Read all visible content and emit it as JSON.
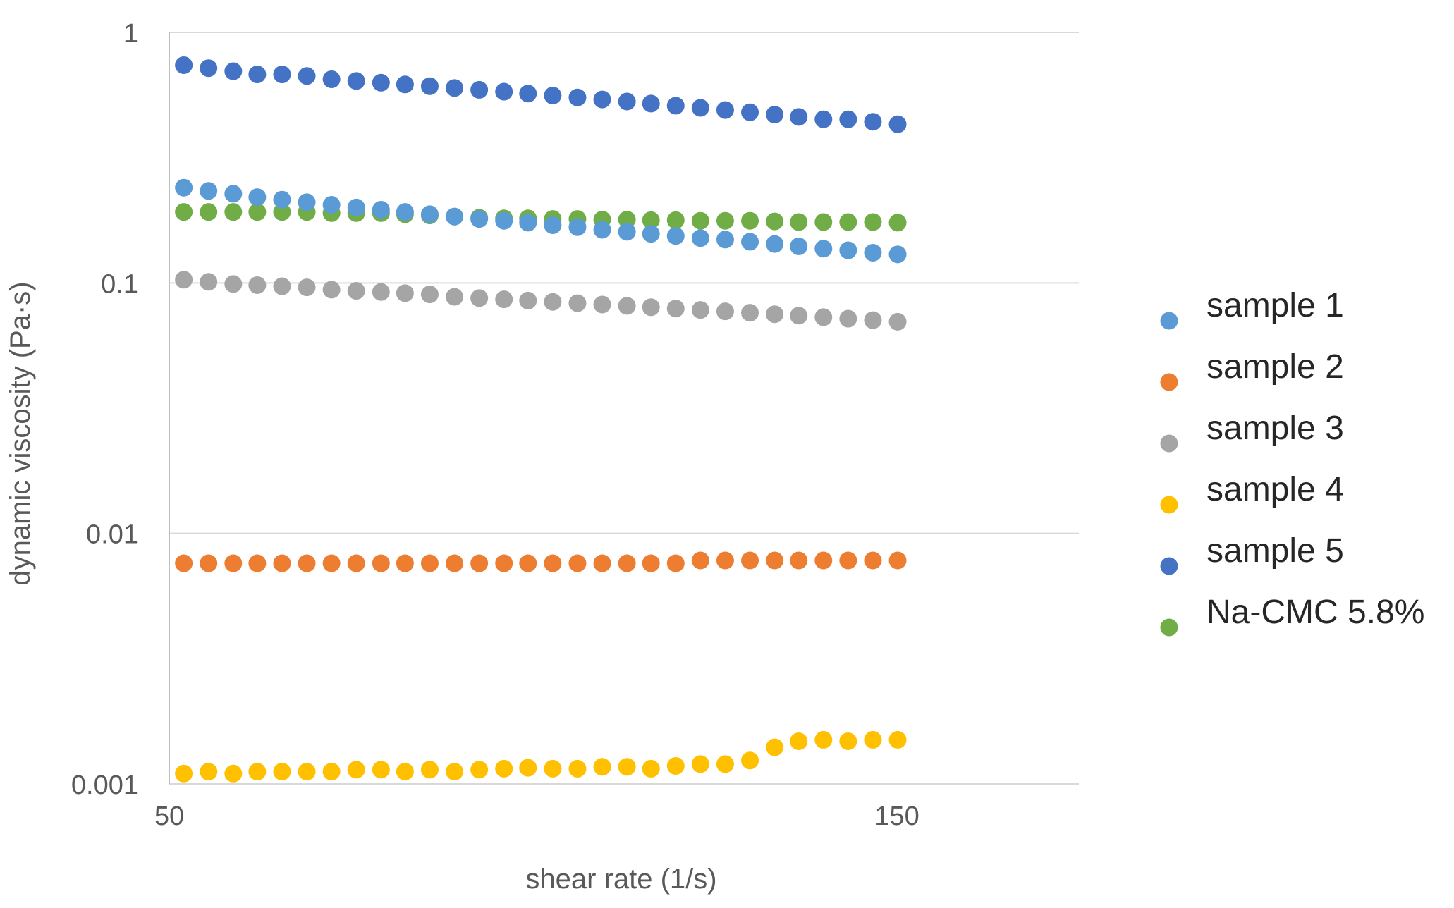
{
  "chart_data": {
    "type": "scatter",
    "title": "",
    "xlabel": "shear rate (1/s)",
    "ylabel": "dynamic viscosity (Pa·s)",
    "xlim": [
      50,
      175
    ],
    "ylim": [
      0.001,
      1
    ],
    "y_scale": "log",
    "x_ticks": [
      {
        "value": 50,
        "label": "50"
      },
      {
        "value": 150,
        "label": "150"
      }
    ],
    "y_ticks": [
      {
        "value": 1,
        "label": "1"
      },
      {
        "value": 0.1,
        "label": "0.1"
      },
      {
        "value": 0.01,
        "label": "0.01"
      },
      {
        "value": 0.001,
        "label": "0.001"
      }
    ],
    "grid": {
      "horizontal": true,
      "vertical": false
    },
    "legend_position": "right",
    "x": [
      52,
      55.4,
      58.8,
      62.1,
      65.5,
      68.9,
      72.3,
      75.7,
      79.1,
      82.4,
      85.8,
      89.2,
      92.6,
      96,
      99.3,
      102.7,
      106.1,
      109.5,
      112.9,
      116.2,
      119.6,
      123,
      126.4,
      129.8,
      133.2,
      136.5,
      139.9,
      143.3,
      146.7,
      150.1
    ],
    "series": [
      {
        "name": "sample 1",
        "color": "#5b9bd5",
        "values": [
          0.24,
          0.233,
          0.227,
          0.22,
          0.215,
          0.21,
          0.205,
          0.2,
          0.196,
          0.192,
          0.188,
          0.184,
          0.18,
          0.177,
          0.174,
          0.17,
          0.167,
          0.163,
          0.16,
          0.157,
          0.154,
          0.151,
          0.149,
          0.146,
          0.143,
          0.14,
          0.137,
          0.135,
          0.132,
          0.13
        ]
      },
      {
        "name": "sample 2",
        "color": "#ed7d31",
        "values": [
          0.0076,
          0.0076,
          0.0076,
          0.0076,
          0.0076,
          0.0076,
          0.0076,
          0.0076,
          0.0076,
          0.0076,
          0.0076,
          0.0076,
          0.0076,
          0.0076,
          0.0076,
          0.0076,
          0.0076,
          0.0076,
          0.0076,
          0.0076,
          0.0076,
          0.0078,
          0.0078,
          0.0078,
          0.0078,
          0.0078,
          0.0078,
          0.0078,
          0.0078,
          0.0078
        ]
      },
      {
        "name": "sample 3",
        "color": "#a5a5a5",
        "values": [
          0.103,
          0.101,
          0.099,
          0.098,
          0.097,
          0.096,
          0.094,
          0.093,
          0.092,
          0.091,
          0.09,
          0.088,
          0.087,
          0.086,
          0.085,
          0.084,
          0.083,
          0.082,
          0.081,
          0.08,
          0.079,
          0.078,
          0.077,
          0.076,
          0.075,
          0.074,
          0.073,
          0.072,
          0.071,
          0.07
        ]
      },
      {
        "name": "sample 4",
        "color": "#ffc000",
        "values": [
          0.0011,
          0.00112,
          0.0011,
          0.00112,
          0.00112,
          0.00112,
          0.00112,
          0.00114,
          0.00114,
          0.00112,
          0.00114,
          0.00112,
          0.00114,
          0.00115,
          0.00116,
          0.00115,
          0.00115,
          0.00117,
          0.00117,
          0.00115,
          0.00118,
          0.0012,
          0.0012,
          0.00124,
          0.0014,
          0.00148,
          0.0015,
          0.00148,
          0.0015,
          0.0015
        ]
      },
      {
        "name": "sample 5",
        "color": "#4472c4",
        "values": [
          0.74,
          0.72,
          0.7,
          0.68,
          0.68,
          0.67,
          0.65,
          0.64,
          0.63,
          0.62,
          0.61,
          0.6,
          0.59,
          0.58,
          0.57,
          0.56,
          0.55,
          0.54,
          0.53,
          0.52,
          0.51,
          0.5,
          0.49,
          0.48,
          0.47,
          0.46,
          0.45,
          0.45,
          0.44,
          0.43
        ]
      },
      {
        "name": "Na-CMC 5.8%",
        "color": "#70ad47",
        "values": [
          0.192,
          0.192,
          0.192,
          0.192,
          0.192,
          0.192,
          0.19,
          0.19,
          0.19,
          0.188,
          0.186,
          0.184,
          0.182,
          0.181,
          0.181,
          0.18,
          0.18,
          0.179,
          0.179,
          0.178,
          0.178,
          0.177,
          0.177,
          0.177,
          0.176,
          0.175,
          0.175,
          0.175,
          0.175,
          0.174
        ]
      }
    ]
  }
}
